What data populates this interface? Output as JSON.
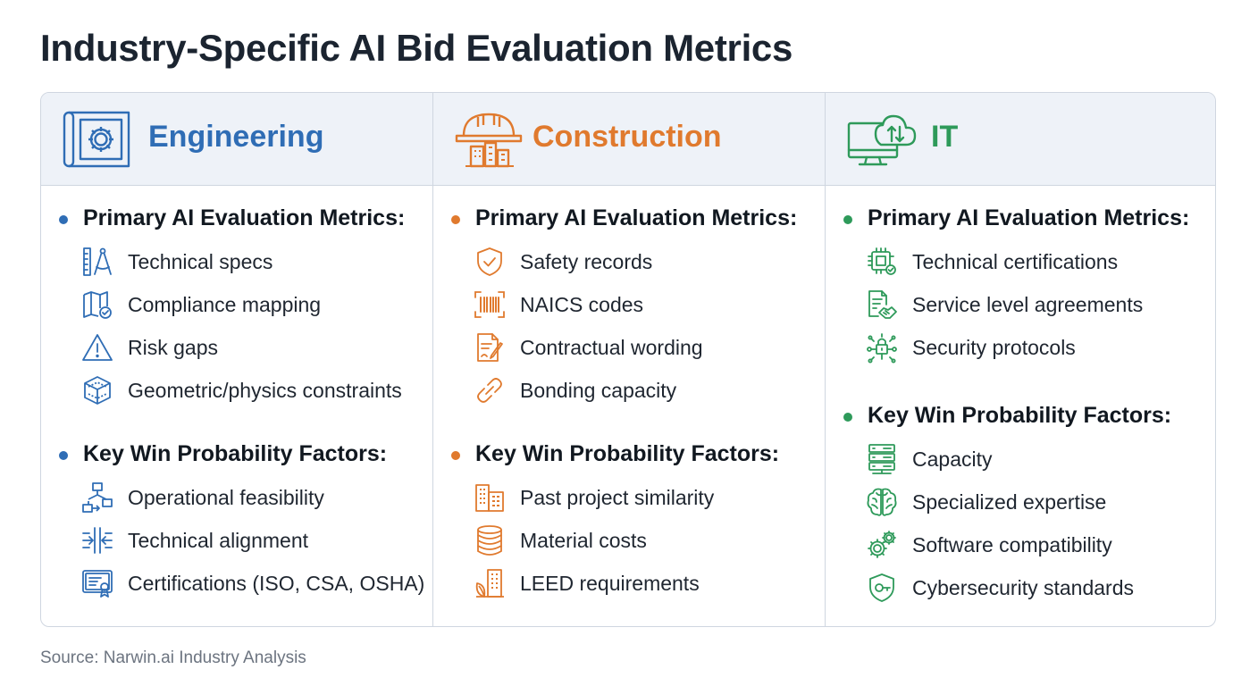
{
  "title": "Industry-Specific AI Bid Evaluation Metrics",
  "source": "Source: Narwin.ai Industry Analysis",
  "columns": [
    {
      "name": "Engineering",
      "color": "#2f6db5",
      "header_icon": "blueprint-gear-icon",
      "primary_title": "Primary AI Evaluation Metrics:",
      "primary": [
        {
          "label": "Technical specs",
          "icon": "ruler-compass-icon"
        },
        {
          "label": "Compliance mapping",
          "icon": "map-check-icon"
        },
        {
          "label": "Risk gaps",
          "icon": "warning-triangle-icon"
        },
        {
          "label": "Geometric/physics constraints",
          "icon": "cube-network-icon"
        }
      ],
      "factors_title": "Key Win Probability Factors:",
      "factors": [
        {
          "label": "Operational feasibility",
          "icon": "flowchart-icon"
        },
        {
          "label": "Technical alignment",
          "icon": "align-arrows-icon"
        },
        {
          "label": "Certifications (ISO, CSA, OSHA)",
          "icon": "certificate-icon"
        }
      ]
    },
    {
      "name": "Construction",
      "color": "#e07a2e",
      "header_icon": "hardhat-buildings-icon",
      "primary_title": "Primary AI Evaluation Metrics:",
      "primary": [
        {
          "label": "Safety records",
          "icon": "shield-check-icon"
        },
        {
          "label": "NAICS codes",
          "icon": "barcode-icon"
        },
        {
          "label": "Contractual wording",
          "icon": "document-pen-icon"
        },
        {
          "label": "Bonding capacity",
          "icon": "chain-link-icon"
        }
      ],
      "factors_title": "Key Win Probability Factors:",
      "factors": [
        {
          "label": "Past project similarity",
          "icon": "buildings-icon"
        },
        {
          "label": "Material costs",
          "icon": "coin-stack-icon"
        },
        {
          "label": "LEED requirements",
          "icon": "green-building-icon"
        }
      ]
    },
    {
      "name": "IT",
      "color": "#2e9a5a",
      "header_icon": "cloud-monitor-icon",
      "primary_title": "Primary AI Evaluation Metrics:",
      "primary": [
        {
          "label": "Technical certifications",
          "icon": "chip-badge-icon"
        },
        {
          "label": "Service level agreements",
          "icon": "document-handshake-icon"
        },
        {
          "label": "Security protocols",
          "icon": "lock-network-icon"
        }
      ],
      "factors_title": "Key Win Probability Factors:",
      "factors": [
        {
          "label": "Capacity",
          "icon": "server-stack-icon"
        },
        {
          "label": "Specialized expertise",
          "icon": "brain-icon"
        },
        {
          "label": "Software compatibility",
          "icon": "gears-icon"
        },
        {
          "label": "Cybersecurity standards",
          "icon": "shield-key-icon"
        }
      ]
    }
  ]
}
